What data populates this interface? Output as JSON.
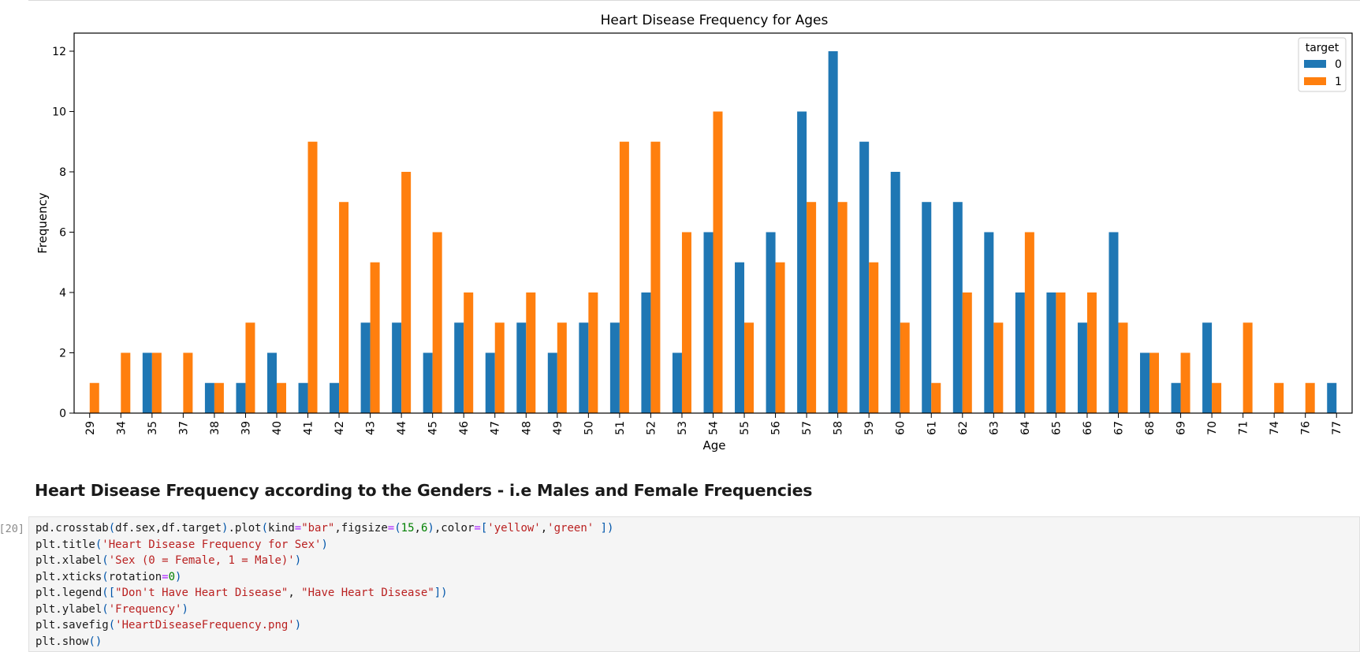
{
  "markdown_heading": "Heart Disease Frequency according to the Genders - i.e Males and Female Frequencies",
  "cell_prompt": "[20]:",
  "code_lines": [
    [
      {
        "t": "pd.crosstab",
        "c": ""
      },
      {
        "t": "(",
        "c": "p"
      },
      {
        "t": "df.sex,df.target",
        "c": ""
      },
      {
        "t": ")",
        "c": "p"
      },
      {
        "t": ".plot",
        "c": ""
      },
      {
        "t": "(",
        "c": "p"
      },
      {
        "t": "kind",
        "c": ""
      },
      {
        "t": "=",
        "c": "op"
      },
      {
        "t": "\"bar\"",
        "c": "str"
      },
      {
        "t": ",figsize",
        "c": ""
      },
      {
        "t": "=",
        "c": "op"
      },
      {
        "t": "(",
        "c": "p"
      },
      {
        "t": "15",
        "c": "num"
      },
      {
        "t": ",",
        "c": ""
      },
      {
        "t": "6",
        "c": "num"
      },
      {
        "t": ")",
        "c": "p"
      },
      {
        "t": ",color",
        "c": ""
      },
      {
        "t": "=",
        "c": "op"
      },
      {
        "t": "[",
        "c": "p"
      },
      {
        "t": "'yellow'",
        "c": "str"
      },
      {
        "t": ",",
        "c": ""
      },
      {
        "t": "'green'",
        "c": "str"
      },
      {
        "t": " ",
        "c": ""
      },
      {
        "t": "])",
        "c": "p"
      }
    ],
    [
      {
        "t": "plt.title",
        "c": ""
      },
      {
        "t": "(",
        "c": "p"
      },
      {
        "t": "'Heart Disease Frequency for Sex'",
        "c": "str"
      },
      {
        "t": ")",
        "c": "p"
      }
    ],
    [
      {
        "t": "plt.xlabel",
        "c": ""
      },
      {
        "t": "(",
        "c": "p"
      },
      {
        "t": "'Sex (0 = Female, 1 = Male)'",
        "c": "str"
      },
      {
        "t": ")",
        "c": "p"
      }
    ],
    [
      {
        "t": "plt.xticks",
        "c": ""
      },
      {
        "t": "(",
        "c": "p"
      },
      {
        "t": "rotation",
        "c": ""
      },
      {
        "t": "=",
        "c": "op"
      },
      {
        "t": "0",
        "c": "num"
      },
      {
        "t": ")",
        "c": "p"
      }
    ],
    [
      {
        "t": "plt.legend",
        "c": ""
      },
      {
        "t": "([",
        "c": "p"
      },
      {
        "t": "\"Don't Have Heart Disease\"",
        "c": "str"
      },
      {
        "t": ", ",
        "c": ""
      },
      {
        "t": "\"Have Heart Disease\"",
        "c": "str"
      },
      {
        "t": "])",
        "c": "p"
      }
    ],
    [
      {
        "t": "plt.ylabel",
        "c": ""
      },
      {
        "t": "(",
        "c": "p"
      },
      {
        "t": "'Frequency'",
        "c": "str"
      },
      {
        "t": ")",
        "c": "p"
      }
    ],
    [
      {
        "t": "plt.savefig",
        "c": ""
      },
      {
        "t": "(",
        "c": "p"
      },
      {
        "t": "'HeartDiseaseFrequency.png'",
        "c": "str"
      },
      {
        "t": ")",
        "c": "p"
      }
    ],
    [
      {
        "t": "plt.show",
        "c": ""
      },
      {
        "t": "()",
        "c": "p"
      }
    ]
  ],
  "colors": {
    "series_0": "#1f77b4",
    "series_1": "#ff7f0e"
  },
  "chart_data": {
    "type": "bar",
    "title": "Heart Disease Frequency for Ages",
    "xlabel": "Age",
    "ylabel": "Frequency",
    "ylim": [
      0,
      12.6
    ],
    "yticks": [
      0,
      2,
      4,
      6,
      8,
      10,
      12
    ],
    "grid": false,
    "legend": {
      "title": "target",
      "placement": "top-right"
    },
    "categories": [
      "29",
      "34",
      "35",
      "37",
      "38",
      "39",
      "40",
      "41",
      "42",
      "43",
      "44",
      "45",
      "46",
      "47",
      "48",
      "49",
      "50",
      "51",
      "52",
      "53",
      "54",
      "55",
      "56",
      "57",
      "58",
      "59",
      "60",
      "61",
      "62",
      "63",
      "64",
      "65",
      "66",
      "67",
      "68",
      "69",
      "70",
      "71",
      "74",
      "76",
      "77"
    ],
    "series": [
      {
        "name": "0",
        "color": "#1f77b4",
        "values": [
          0,
          0,
          2,
          0,
          1,
          1,
          2,
          1,
          1,
          3,
          3,
          2,
          3,
          2,
          3,
          2,
          3,
          3,
          4,
          2,
          6,
          5,
          6,
          10,
          12,
          9,
          8,
          7,
          7,
          6,
          4,
          4,
          3,
          6,
          2,
          1,
          3,
          0,
          0,
          0,
          1
        ]
      },
      {
        "name": "1",
        "color": "#ff7f0e",
        "values": [
          1,
          2,
          2,
          2,
          1,
          3,
          1,
          9,
          7,
          5,
          8,
          6,
          4,
          3,
          4,
          3,
          4,
          9,
          9,
          6,
          10,
          3,
          5,
          7,
          7,
          5,
          3,
          1,
          4,
          3,
          6,
          4,
          4,
          3,
          2,
          2,
          1,
          3,
          1,
          1,
          0
        ]
      }
    ]
  }
}
